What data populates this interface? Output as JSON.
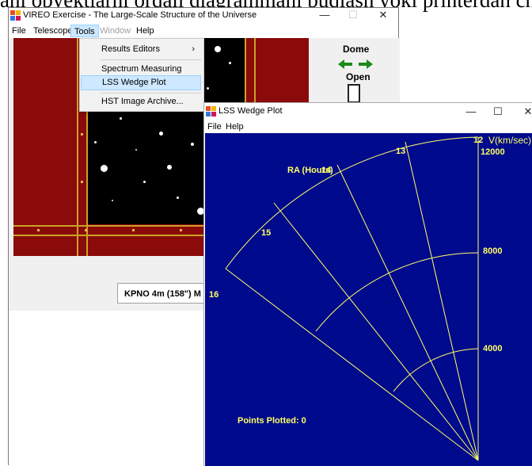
{
  "banner": {
    "text": "ani obyektlarni orqali diagrammani buqlash yoki printerdan ch"
  },
  "main_window": {
    "title": "VIREO Exercise - The Large-Scale Structure of the Universe",
    "controls": {
      "minimize": "—",
      "maximize": "☐",
      "close": "✕"
    },
    "menu": {
      "file": "File",
      "telescopes": "Telescopes",
      "tools": "Tools",
      "window": "Window",
      "help": "Help"
    }
  },
  "tools_menu": {
    "items": [
      {
        "label": "Results Editors",
        "arrow": "›"
      },
      {
        "label": "Spectrum Measuring"
      },
      {
        "label": "LSS Wedge Plot"
      },
      {
        "label": "HST Image Archive..."
      }
    ]
  },
  "dome": {
    "label": "Dome",
    "state": "Open",
    "arrow_color": "#1a8a1a"
  },
  "status": {
    "text": "KPNO 4m (158\") M"
  },
  "lss_window": {
    "title": "LSS Wedge Plot",
    "controls": {
      "minimize": "—",
      "maximize": "☐",
      "close": "✕"
    },
    "menu": {
      "file": "File",
      "help": "Help"
    }
  },
  "wedge_plot": {
    "ra_label": "RA (Hours)",
    "v_label": "V(km/sec)",
    "ra_ticks": [
      "12",
      "13",
      "14",
      "15",
      "16"
    ],
    "v_ticks": [
      "12000",
      "8000",
      "4000"
    ],
    "points_label": "Points Plotted: 0",
    "background": "#000a8c",
    "line_color": "#ffff66"
  }
}
